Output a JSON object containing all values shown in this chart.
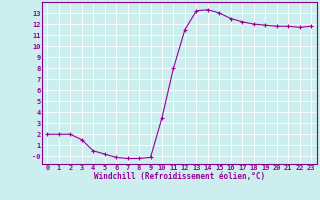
{
  "x": [
    0,
    1,
    2,
    3,
    4,
    5,
    6,
    7,
    8,
    9,
    10,
    11,
    12,
    13,
    14,
    15,
    16,
    17,
    18,
    19,
    20,
    21,
    22,
    23
  ],
  "y": [
    2.0,
    2.0,
    2.0,
    1.5,
    0.5,
    0.2,
    -0.1,
    -0.2,
    -0.2,
    -0.1,
    3.5,
    8.0,
    11.5,
    13.2,
    13.3,
    13.0,
    12.5,
    12.2,
    12.0,
    11.9,
    11.8,
    11.8,
    11.7,
    11.8
  ],
  "line_color": "#990099",
  "marker": "+",
  "markersize": 3,
  "linewidth": 0.8,
  "xlabel": "Windchill (Refroidissement éolien,°C)",
  "xlim": [
    -0.5,
    23.5
  ],
  "ylim": [
    -0.7,
    14.0
  ],
  "yticks": [
    0,
    1,
    2,
    3,
    4,
    5,
    6,
    7,
    8,
    9,
    10,
    11,
    12,
    13
  ],
  "ytick_labels": [
    "-0",
    "1",
    "2",
    "3",
    "4",
    "5",
    "6",
    "7",
    "8",
    "9",
    "10",
    "11",
    "12",
    "13"
  ],
  "xticks": [
    0,
    1,
    2,
    3,
    4,
    5,
    6,
    7,
    8,
    9,
    10,
    11,
    12,
    13,
    14,
    15,
    16,
    17,
    18,
    19,
    20,
    21,
    22,
    23
  ],
  "xtick_labels": [
    "0",
    "1",
    "2",
    "3",
    "4",
    "5",
    "6",
    "7",
    "8",
    "9",
    "10",
    "11",
    "12",
    "13",
    "14",
    "15",
    "16",
    "17",
    "18",
    "19",
    "20",
    "21",
    "22",
    "23"
  ],
  "bg_color": "#cceeee",
  "grid_color": "#ffffff",
  "line_border_color": "#880088",
  "tick_color": "#990099",
  "label_color": "#990099",
  "font_size_tick": 5.0,
  "font_size_xlabel": 5.5
}
